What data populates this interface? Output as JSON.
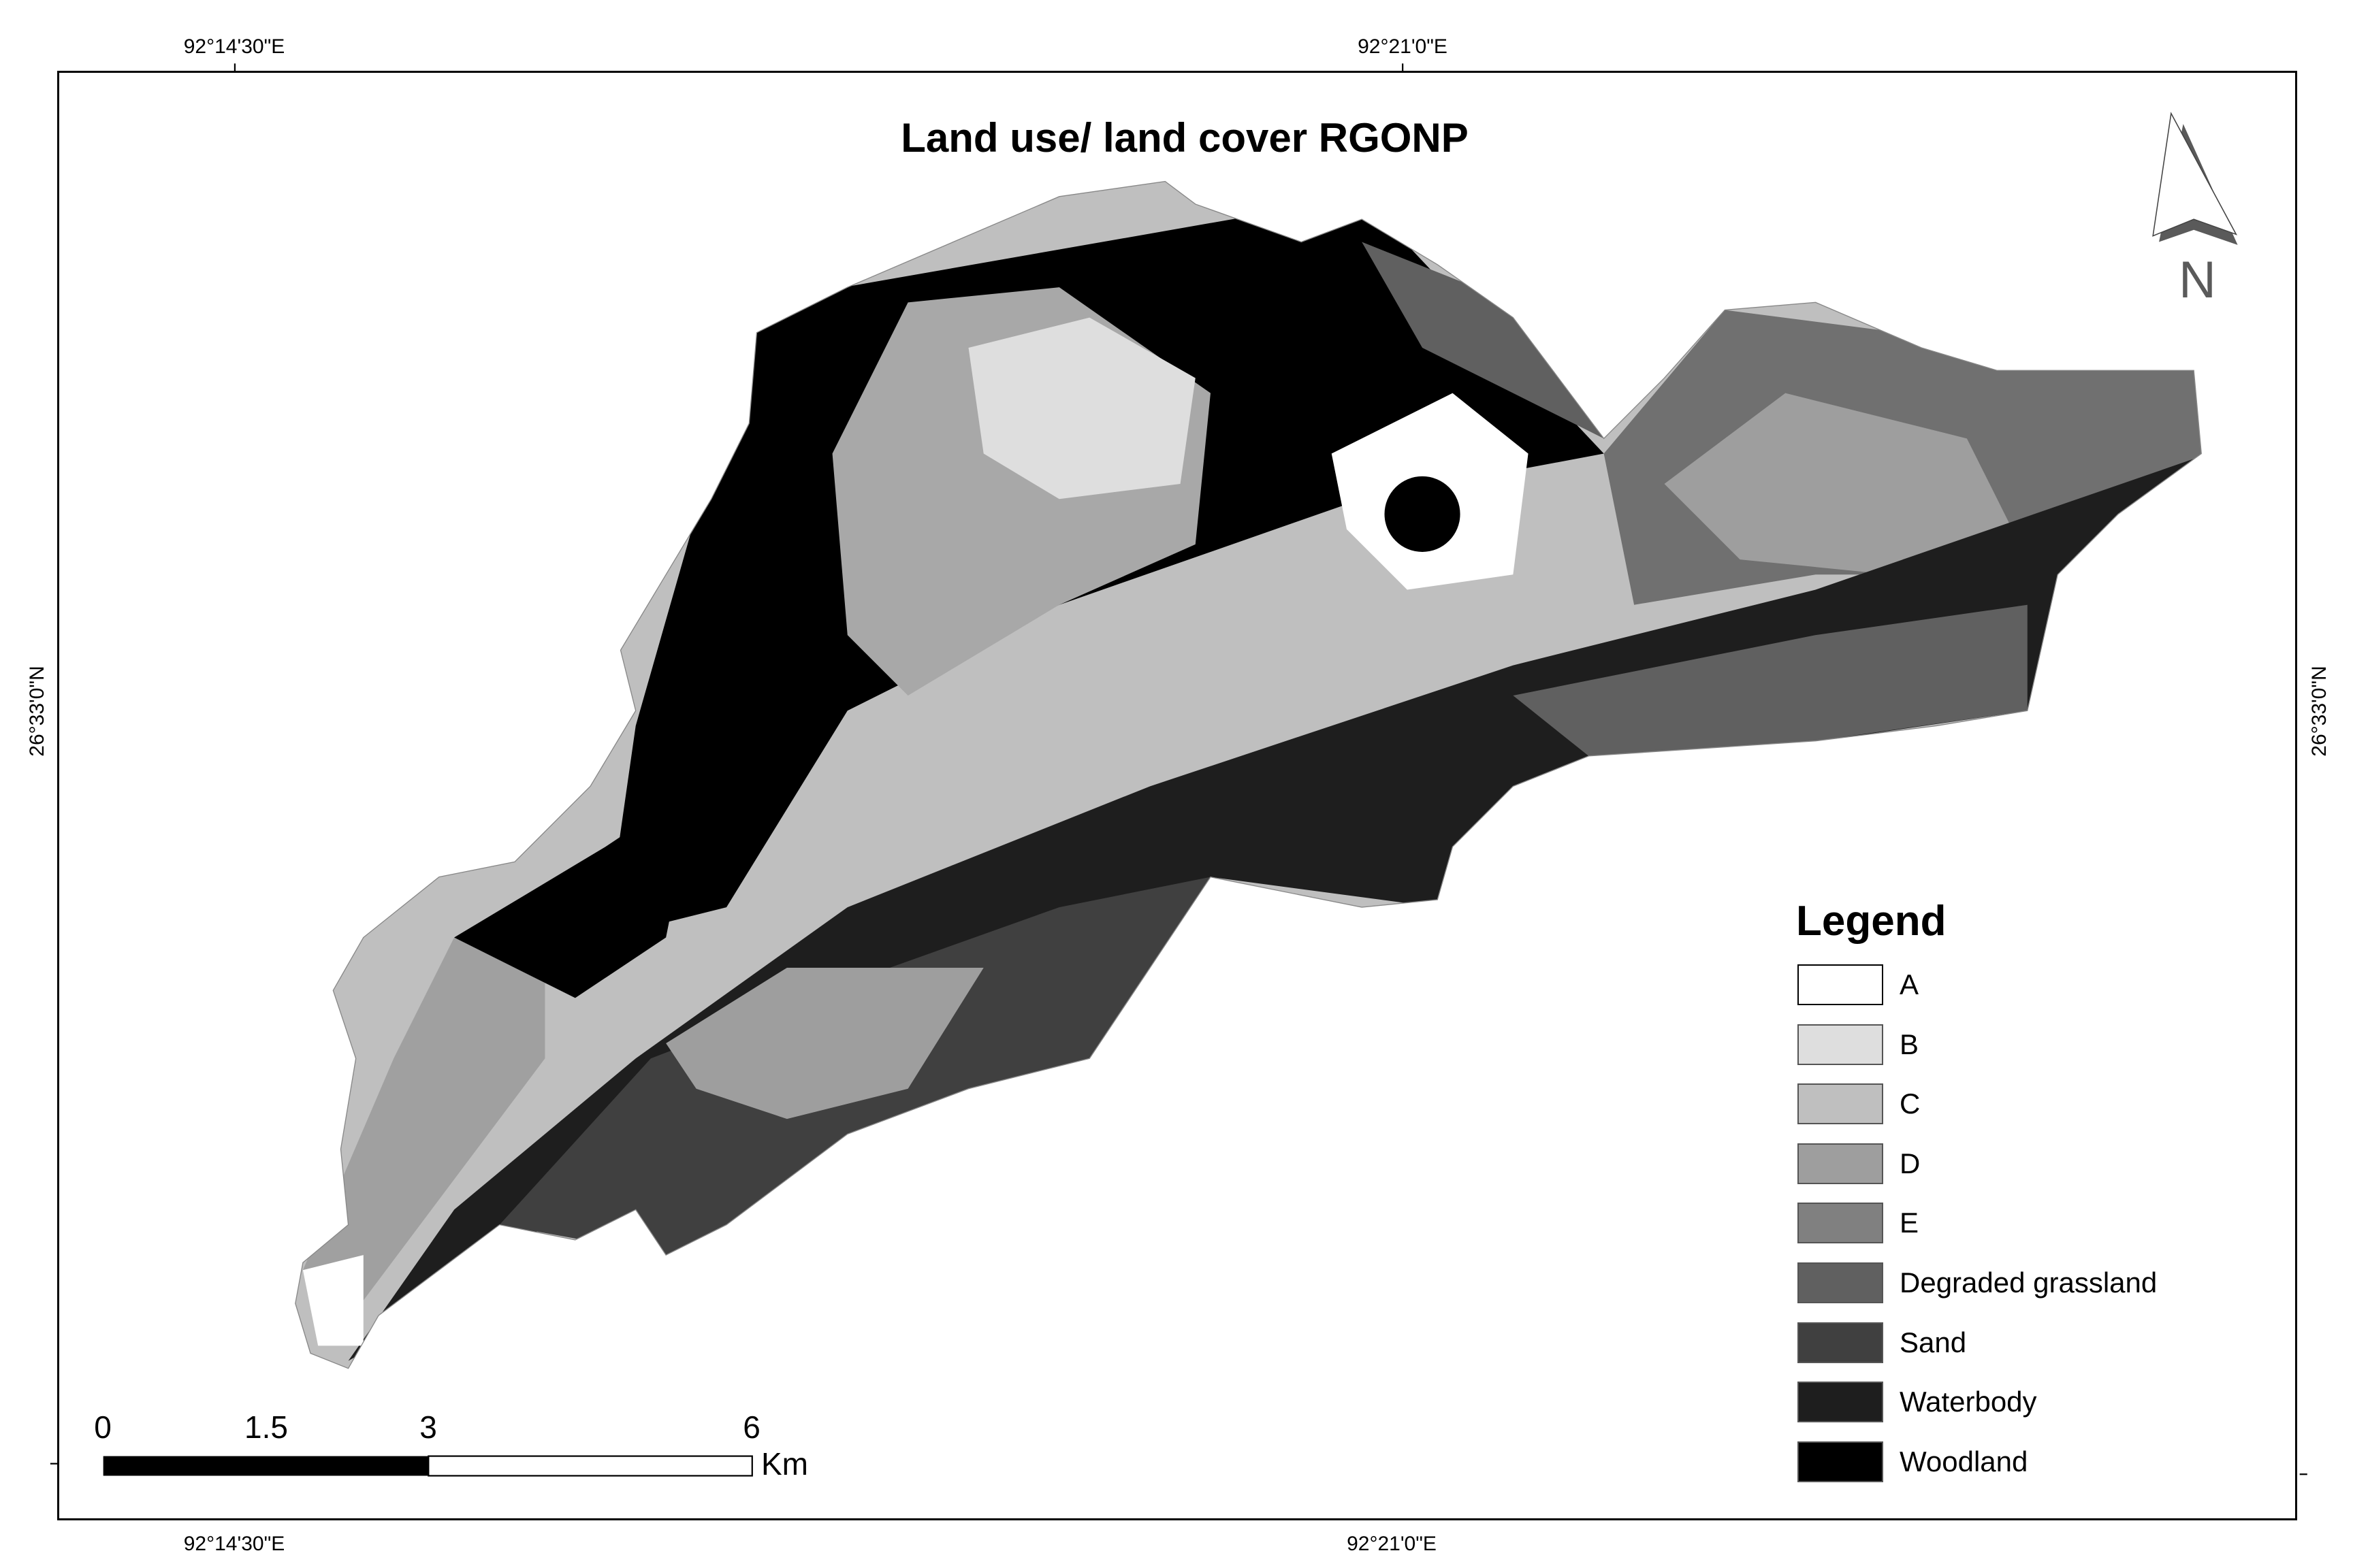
{
  "title": "Land use/ land cover RGONP",
  "coordinates": {
    "top": [
      "92°14'30\"E",
      "92°21'0\"E"
    ],
    "bottom": [
      "92°14'30\"E",
      "92°21'0\"E"
    ],
    "left": "26°33'0\"N",
    "right": "26°33'0\"N"
  },
  "north_arrow": {
    "label": "N",
    "icon": "north-arrow-icon"
  },
  "scale_bar": {
    "labels": [
      "0",
      "1.5",
      "3",
      "6"
    ],
    "unit": "Km"
  },
  "legend": {
    "title": "Legend",
    "items": [
      {
        "label": "A",
        "color": "#ffffff"
      },
      {
        "label": "B",
        "color": "#dedede"
      },
      {
        "label": "C",
        "color": "#bfbfbf"
      },
      {
        "label": "D",
        "color": "#9e9e9e"
      },
      {
        "label": "E",
        "color": "#808080"
      },
      {
        "label": "Degraded grassland",
        "color": "#606060"
      },
      {
        "label": "Sand",
        "color": "#404040"
      },
      {
        "label": "Waterbody",
        "color": "#1e1e1e"
      },
      {
        "label": "Woodland",
        "color": "#000000"
      }
    ]
  }
}
